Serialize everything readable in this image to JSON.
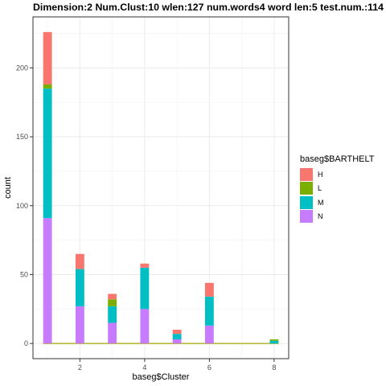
{
  "chart_data": {
    "type": "bar",
    "stacked": true,
    "title": "Dimension:2  Num.Clust:10  wlen:127  num.words4  word len:5  test.num.:114",
    "xlabel": "baseg$Cluster",
    "ylabel": "count",
    "xlim": [
      0.55,
      8.45
    ],
    "ylim": [
      -11,
      237
    ],
    "x_ticks": [
      2,
      4,
      6,
      8
    ],
    "y_ticks": [
      0,
      50,
      100,
      150,
      200
    ],
    "grid": true,
    "legend_position": "right",
    "legend_title": "baseg$BARTHELT",
    "bar_width": 0.27,
    "x": [
      1,
      2,
      3,
      4,
      5,
      6,
      8
    ],
    "series": [
      {
        "name": "N",
        "color": "#C77CFF",
        "values": [
          91,
          27,
          15,
          25,
          3,
          13,
          0
        ]
      },
      {
        "name": "M",
        "color": "#00BFC4",
        "values": [
          94,
          27,
          12,
          30,
          4,
          21,
          2
        ]
      },
      {
        "name": "L",
        "color": "#7CAE00",
        "values": [
          3,
          0,
          5,
          0,
          0,
          0,
          1
        ]
      },
      {
        "name": "H",
        "color": "#F8766D",
        "values": [
          38,
          11,
          4,
          3,
          3,
          10,
          0
        ]
      }
    ],
    "zero_line_color": "#A3A500"
  }
}
